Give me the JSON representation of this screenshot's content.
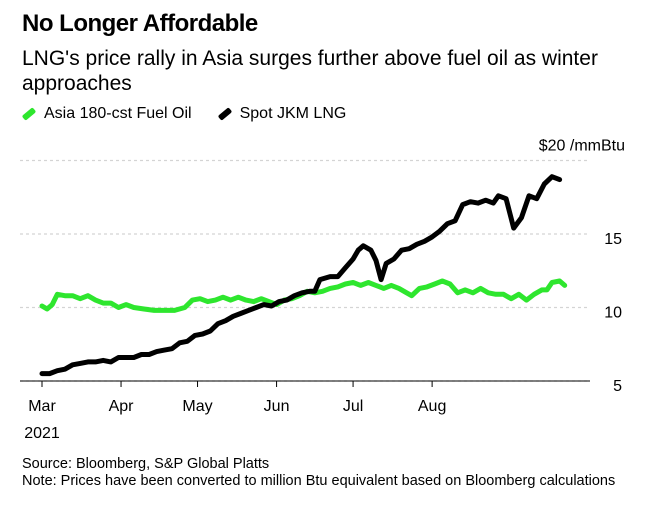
{
  "header": {
    "title": "No Longer Affordable",
    "subtitle": "LNG's price rally in Asia surges further above fuel oil as winter approaches"
  },
  "legend": [
    {
      "label": "Asia 180-cst Fuel Oil",
      "color": "#2ee62e"
    },
    {
      "label": "Spot JKM LNG",
      "color": "#000000"
    }
  ],
  "footer": {
    "source": "Source: Bloomberg, S&P Global Platts",
    "note": "Note: Prices have been converted to million Btu equivalent based on Bloomberg calculations"
  },
  "chart_data": {
    "type": "line",
    "y_unit_label": "$20 /mmBtu",
    "ylim": [
      4.5,
      20
    ],
    "y_ticks": [
      {
        "value": 20,
        "label": "$20 /mmBtu"
      },
      {
        "value": 15,
        "label": "15"
      },
      {
        "value": 10,
        "label": "10"
      },
      {
        "value": 5,
        "label": "5"
      }
    ],
    "x_range": [
      "2021-03-01",
      "2021-09-28"
    ],
    "x_ticks": [
      {
        "date": "2021-03-01",
        "label": "Mar",
        "sublabel": "2021"
      },
      {
        "date": "2021-04-01",
        "label": "Apr"
      },
      {
        "date": "2021-05-01",
        "label": "May"
      },
      {
        "date": "2021-06-01",
        "label": "Jun"
      },
      {
        "date": "2021-07-01",
        "label": "Jul"
      },
      {
        "date": "2021-08-01",
        "label": "Aug"
      }
    ],
    "grid": true,
    "series": [
      {
        "name": "Asia 180-cst Fuel Oil",
        "color": "#2ee62e",
        "points": [
          [
            "2021-03-01",
            10.1
          ],
          [
            "2021-03-03",
            9.9
          ],
          [
            "2021-03-05",
            10.2
          ],
          [
            "2021-03-07",
            10.9
          ],
          [
            "2021-03-10",
            10.8
          ],
          [
            "2021-03-13",
            10.8
          ],
          [
            "2021-03-16",
            10.6
          ],
          [
            "2021-03-19",
            10.8
          ],
          [
            "2021-03-22",
            10.5
          ],
          [
            "2021-03-25",
            10.3
          ],
          [
            "2021-03-28",
            10.3
          ],
          [
            "2021-03-31",
            10.0
          ],
          [
            "2021-04-03",
            10.2
          ],
          [
            "2021-04-06",
            10.0
          ],
          [
            "2021-04-10",
            9.9
          ],
          [
            "2021-04-14",
            9.8
          ],
          [
            "2021-04-18",
            9.8
          ],
          [
            "2021-04-22",
            9.8
          ],
          [
            "2021-04-26",
            10.0
          ],
          [
            "2021-04-29",
            10.5
          ],
          [
            "2021-05-02",
            10.6
          ],
          [
            "2021-05-05",
            10.4
          ],
          [
            "2021-05-08",
            10.5
          ],
          [
            "2021-05-11",
            10.7
          ],
          [
            "2021-05-14",
            10.5
          ],
          [
            "2021-05-17",
            10.7
          ],
          [
            "2021-05-20",
            10.5
          ],
          [
            "2021-05-23",
            10.4
          ],
          [
            "2021-05-26",
            10.6
          ],
          [
            "2021-05-29",
            10.4
          ],
          [
            "2021-06-01",
            10.2
          ],
          [
            "2021-06-04",
            10.5
          ],
          [
            "2021-06-07",
            10.6
          ],
          [
            "2021-06-10",
            10.8
          ],
          [
            "2021-06-13",
            11.1
          ],
          [
            "2021-06-16",
            11.0
          ],
          [
            "2021-06-19",
            11.1
          ],
          [
            "2021-06-22",
            11.3
          ],
          [
            "2021-06-25",
            11.4
          ],
          [
            "2021-06-28",
            11.6
          ],
          [
            "2021-07-01",
            11.7
          ],
          [
            "2021-07-04",
            11.5
          ],
          [
            "2021-07-07",
            11.7
          ],
          [
            "2021-07-10",
            11.5
          ],
          [
            "2021-07-13",
            11.3
          ],
          [
            "2021-07-16",
            11.5
          ],
          [
            "2021-07-19",
            11.3
          ],
          [
            "2021-07-22",
            11.0
          ],
          [
            "2021-07-24",
            10.8
          ],
          [
            "2021-07-27",
            11.3
          ],
          [
            "2021-07-30",
            11.4
          ],
          [
            "2021-08-02",
            11.6
          ],
          [
            "2021-08-05",
            11.8
          ],
          [
            "2021-08-08",
            11.6
          ],
          [
            "2021-08-11",
            11.0
          ],
          [
            "2021-08-14",
            11.2
          ],
          [
            "2021-08-17",
            11.0
          ],
          [
            "2021-08-20",
            11.3
          ],
          [
            "2021-08-23",
            11.0
          ],
          [
            "2021-08-26",
            10.9
          ],
          [
            "2021-08-29",
            10.9
          ],
          [
            "2021-09-01",
            10.6
          ],
          [
            "2021-09-04",
            10.9
          ],
          [
            "2021-09-07",
            10.5
          ],
          [
            "2021-09-10",
            10.9
          ],
          [
            "2021-09-13",
            11.2
          ],
          [
            "2021-09-15",
            11.2
          ],
          [
            "2021-09-17",
            11.7
          ],
          [
            "2021-09-20",
            11.8
          ],
          [
            "2021-09-22",
            11.5
          ]
        ]
      },
      {
        "name": "Spot JKM LNG",
        "color": "#000000",
        "points": [
          [
            "2021-03-01",
            5.5
          ],
          [
            "2021-03-04",
            5.5
          ],
          [
            "2021-03-07",
            5.7
          ],
          [
            "2021-03-10",
            5.8
          ],
          [
            "2021-03-13",
            6.1
          ],
          [
            "2021-03-16",
            6.2
          ],
          [
            "2021-03-19",
            6.3
          ],
          [
            "2021-03-22",
            6.3
          ],
          [
            "2021-03-25",
            6.4
          ],
          [
            "2021-03-28",
            6.3
          ],
          [
            "2021-03-31",
            6.6
          ],
          [
            "2021-04-03",
            6.6
          ],
          [
            "2021-04-06",
            6.6
          ],
          [
            "2021-04-09",
            6.8
          ],
          [
            "2021-04-12",
            6.8
          ],
          [
            "2021-04-15",
            7.0
          ],
          [
            "2021-04-18",
            7.1
          ],
          [
            "2021-04-21",
            7.2
          ],
          [
            "2021-04-24",
            7.6
          ],
          [
            "2021-04-27",
            7.7
          ],
          [
            "2021-04-30",
            8.1
          ],
          [
            "2021-05-03",
            8.2
          ],
          [
            "2021-05-06",
            8.4
          ],
          [
            "2021-05-09",
            8.9
          ],
          [
            "2021-05-12",
            9.1
          ],
          [
            "2021-05-15",
            9.4
          ],
          [
            "2021-05-18",
            9.6
          ],
          [
            "2021-05-21",
            9.8
          ],
          [
            "2021-05-24",
            10.0
          ],
          [
            "2021-05-27",
            10.2
          ],
          [
            "2021-05-30",
            10.1
          ],
          [
            "2021-06-02",
            10.4
          ],
          [
            "2021-06-05",
            10.5
          ],
          [
            "2021-06-08",
            10.8
          ],
          [
            "2021-06-11",
            11.0
          ],
          [
            "2021-06-14",
            11.1
          ],
          [
            "2021-06-16",
            11.1
          ],
          [
            "2021-06-18",
            11.9
          ],
          [
            "2021-06-22",
            12.1
          ],
          [
            "2021-06-25",
            12.1
          ],
          [
            "2021-06-28",
            12.7
          ],
          [
            "2021-07-01",
            13.3
          ],
          [
            "2021-07-03",
            13.9
          ],
          [
            "2021-07-05",
            14.2
          ],
          [
            "2021-07-08",
            13.9
          ],
          [
            "2021-07-10",
            13.2
          ],
          [
            "2021-07-12",
            11.9
          ],
          [
            "2021-07-14",
            13.0
          ],
          [
            "2021-07-17",
            13.3
          ],
          [
            "2021-07-20",
            13.9
          ],
          [
            "2021-07-23",
            14.0
          ],
          [
            "2021-07-26",
            14.3
          ],
          [
            "2021-07-29",
            14.5
          ],
          [
            "2021-08-01",
            14.8
          ],
          [
            "2021-08-04",
            15.2
          ],
          [
            "2021-08-07",
            15.7
          ],
          [
            "2021-08-10",
            15.9
          ],
          [
            "2021-08-13",
            17.0
          ],
          [
            "2021-08-16",
            17.2
          ],
          [
            "2021-08-19",
            17.1
          ],
          [
            "2021-08-22",
            17.3
          ],
          [
            "2021-08-25",
            17.1
          ],
          [
            "2021-08-27",
            17.6
          ],
          [
            "2021-08-30",
            17.4
          ],
          [
            "2021-09-02",
            15.4
          ],
          [
            "2021-09-05",
            16.1
          ],
          [
            "2021-09-08",
            17.6
          ],
          [
            "2021-09-11",
            17.4
          ],
          [
            "2021-09-14",
            18.4
          ],
          [
            "2021-09-17",
            18.9
          ],
          [
            "2021-09-20",
            18.7
          ]
        ]
      }
    ]
  }
}
